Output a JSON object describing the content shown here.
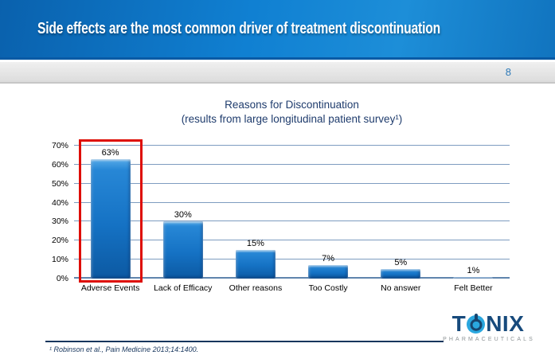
{
  "header": {
    "title": "Side effects are the most common driver of treatment discontinuation",
    "page_number": "8"
  },
  "chart_data": {
    "type": "bar",
    "title": "Reasons for Discontinuation",
    "subtitle": "(results from large longitudinal patient survey¹)",
    "categories": [
      "Adverse Events",
      "Lack of Efficacy",
      "Other reasons",
      "Too Costly",
      "No answer",
      "Felt Better"
    ],
    "values": [
      63,
      30,
      15,
      7,
      5,
      1
    ],
    "value_labels": [
      "63%",
      "30%",
      "15%",
      "7%",
      "5%",
      "1%"
    ],
    "y_tick_labels": [
      "0%",
      "10%",
      "20%",
      "30%",
      "40%",
      "50%",
      "60%",
      "70%"
    ],
    "ylim": [
      0,
      70
    ],
    "xlabel": "",
    "ylabel": "",
    "grid": true,
    "legend": false,
    "bar_color": "#1572c4",
    "highlight_category": "Adverse Events",
    "highlight_box_color": "#de0d05"
  },
  "footer": {
    "footnote": "¹ Robinson et al., Pain Medicine 2013;14:1400.",
    "logo": {
      "brand_t": "T",
      "brand_nix": "NIX",
      "power_icon": "power-button",
      "subtext": "PHARMACEUTICALS",
      "navy": "#174a7c",
      "cyan": "#2aa7df"
    }
  },
  "colors": {
    "header_gradient_start": "#0a61ad",
    "header_gradient_end": "#1d8ed8",
    "title_text": "#ffffff",
    "chart_title_text": "#1f3c6d",
    "gridline": "#7e9cc0",
    "footnote_text": "#17365d",
    "page_number_text": "#2d7ab8"
  }
}
